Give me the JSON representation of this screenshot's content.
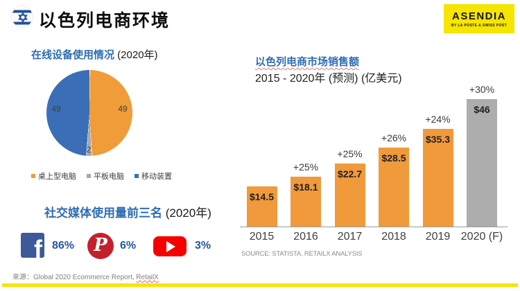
{
  "header": {
    "title": "以色列电商环境",
    "logo_name": "ASENDIA",
    "logo_tagline": "BY LA POSTE & SWISS POST"
  },
  "colors": {
    "heading_blue": "#2E6DB4",
    "social_value_blue": "#2456A8",
    "pie_orange": "#F09C38",
    "pie_gray": "#A8A8A8",
    "pie_blue": "#3A6FB8",
    "bar_orange": "#F09A3C",
    "bar_gray": "#ADADAD",
    "brand_yellow": "#F6E500",
    "facebook_blue": "#3C5A99",
    "pinterest_red": "#C4202B",
    "youtube_red": "#F70000"
  },
  "device_section": {
    "title": "在线设备使用情况",
    "year_suffix": " (2020年)"
  },
  "social_section": {
    "title": "社交媒体使用量前三名",
    "year_suffix": " (2020年)",
    "platforms": [
      {
        "name": "Facebook",
        "icon_glyph": "f",
        "value": "86%"
      },
      {
        "name": "Pinterest",
        "icon_glyph": "P",
        "value": "6%"
      },
      {
        "name": "YouTube",
        "icon_glyph": "",
        "value": "3%"
      }
    ]
  },
  "sales_section": {
    "title": "以色列电商市场销售额",
    "subtitle": "2015 - 2020年 (预测) (亿美元)",
    "source": "SOURCE: STATISTA, RETAILX ANALYSIS"
  },
  "footer": {
    "source_label": "來源：",
    "source_text": "Global 2020 Ecommerce Report, ",
    "source_link": "RetailX"
  },
  "chart_data": [
    {
      "type": "pie",
      "title": "在线设备使用情况 (2020年)",
      "labels": [
        "桌上型电脑",
        "平板电脑",
        "移动装置"
      ],
      "values": [
        49,
        2,
        49
      ],
      "colors": [
        "#F09C38",
        "#A8A8A8",
        "#3A6FB8"
      ],
      "legend_position": "bottom",
      "note": "orange desktop 49% right half, gray tablet 2% bottom sliver, blue mobile 49% left half, clockwise from top"
    },
    {
      "type": "bar",
      "title": "以色列电商市场销售额 2015 - 2020年 (预测) (亿美元)",
      "categories": [
        "2015",
        "2016",
        "2017",
        "2018",
        "2019",
        "2020 (F)"
      ],
      "values": [
        14.5,
        18.1,
        22.7,
        28.5,
        35.3,
        46
      ],
      "value_labels": [
        "$14.5",
        "$18.1",
        "$22.7",
        "$28.5",
        "$35.3",
        "$46"
      ],
      "growth_labels": [
        "",
        "+25%",
        "+25%",
        "+26%",
        "+24%",
        "+30%"
      ],
      "bar_colors": [
        "#F09A3C",
        "#F09A3C",
        "#F09A3C",
        "#F09A3C",
        "#F09A3C",
        "#ADADAD"
      ],
      "xlabel": "",
      "ylabel": "亿美元",
      "ylim": [
        0,
        50
      ],
      "grid": false,
      "legend": false,
      "source": "SOURCE: STATISTA, RETAILX ANALYSIS"
    }
  ]
}
